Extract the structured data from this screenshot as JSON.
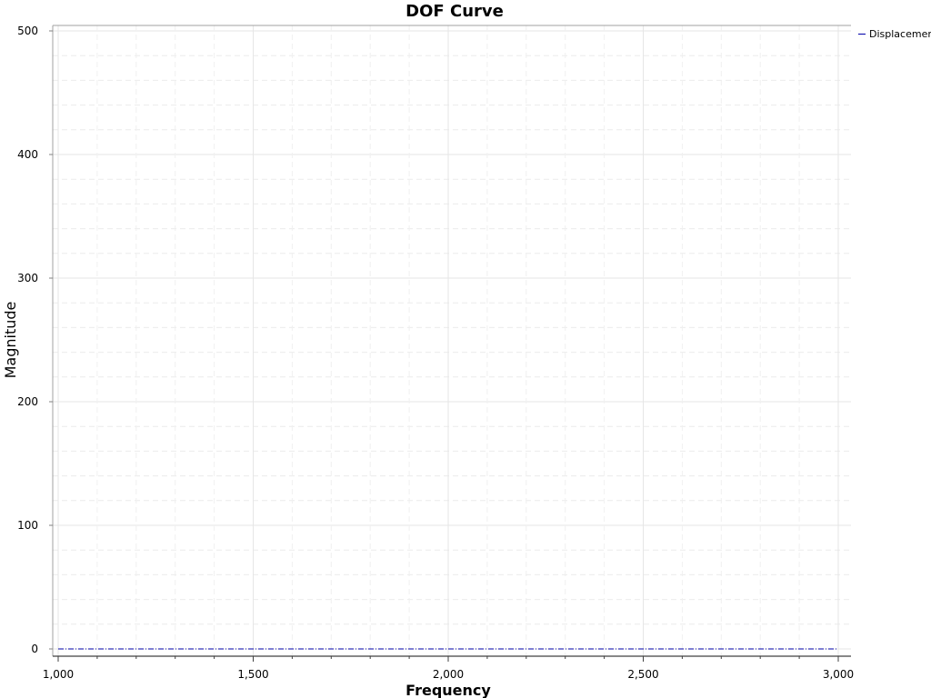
{
  "chart_data": {
    "type": "line",
    "title": "DOF Curve",
    "xlabel": "Frequency",
    "ylabel": "Magnitude",
    "xlim": [
      1000,
      3000
    ],
    "ylim": [
      0,
      500
    ],
    "x_ticks": [
      1000,
      1500,
      2000,
      2500,
      3000
    ],
    "x_tick_labels": [
      "1,000",
      "1,500",
      "2,000",
      "2,500",
      "3,000"
    ],
    "y_ticks": [
      0,
      100,
      200,
      300,
      400,
      500
    ],
    "y_tick_labels": [
      "0",
      "100",
      "200",
      "300",
      "400",
      "500"
    ],
    "grid": true,
    "legend_position": "top-right",
    "series": [
      {
        "name": "Displacement",
        "color": "#0000aa",
        "line_style": "dash-dot",
        "x": [
          1000,
          1500,
          2000,
          2500,
          3000
        ],
        "y": [
          0,
          0,
          0,
          0,
          0
        ]
      }
    ]
  }
}
